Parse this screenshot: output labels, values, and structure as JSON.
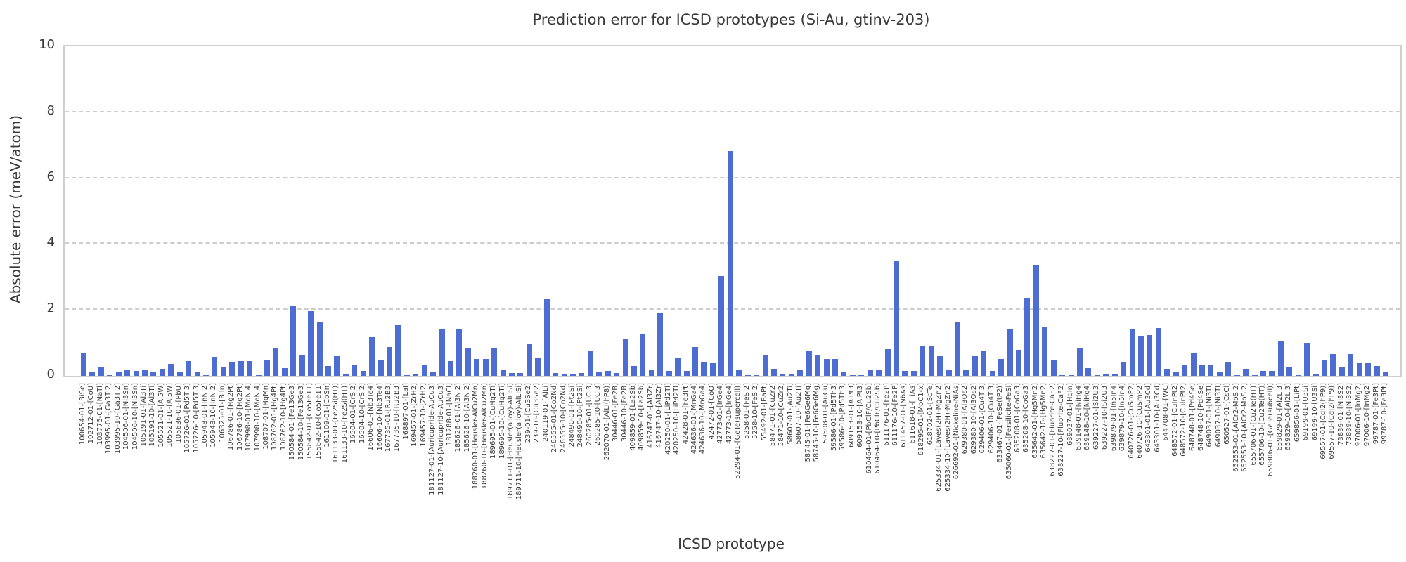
{
  "figure": {
    "title": "Prediction error for ICSD prototypes (Si-Au, gtinv-203)",
    "xlabel": "ICSD prototype",
    "ylabel": "Absolute error (meV/atom)"
  },
  "chart_data": {
    "type": "bar",
    "title": "Prediction error for ICSD prototypes (Si-Au, gtinv-203)",
    "xlabel": "ICSD prototype",
    "ylabel": "Absolute error (meV/atom)",
    "ylim": [
      0,
      10
    ],
    "yticks": [
      0,
      2,
      4,
      6,
      8,
      10
    ],
    "grid": "horizontal-dashed",
    "legend": "none",
    "bar_color": "#4e6dd2",
    "categories": [
      "100654-01-[BiSe]",
      "102712-01-[CoU]",
      "103775-01-[NaTl]",
      "103995-01-[Ga3Ti2]",
      "103995-10-[Ga3Ti2]",
      "104506-01-[Ni3Sn]",
      "104506-10-[Ni3Sn]",
      "105191-01-[Al3Ti]",
      "105191-10-[Al3Ti]",
      "105521-01-[Al5W]",
      "105521-10-[Al5W]",
      "105636-01-[PbU]",
      "105726-01-[Pd5Ti3]",
      "105726-10-[Pd5Ti3]",
      "105948-01-[InNi2]",
      "105948-10-[InNi2]",
      "106325-01-[BiIn]",
      "106786-01-[Hg2Pt]",
      "106786-10-[Hg2Pt]",
      "107998-01-[MoNi4]",
      "107998-10-[MoNi4]",
      "108707-01-[HgMn]",
      "108762-01-[Hg4Pt]",
      "108762-10-[Hg4Pt]",
      "150584-01-[Fe13Ge3]",
      "150584-10-[Fe13Ge3]",
      "155842-01-[Co5Fe11]",
      "155842-10-[Co5Fe11]",
      "161109-01-[CoSn]",
      "161133-01-[Fe2Si(HT)]",
      "161133-10-[Fe2Si(HT)]",
      "16504-01-[CrSi2]",
      "16504-10-[CrSi2]",
      "16606-01-[Nb3Te4]",
      "16606-10-[Nb3Te4]",
      "167735-01-[Ru2B3]",
      "167735-10-[Ru2B3]",
      "168897-01-[LaI]",
      "169457-01-[ZrH2]",
      "169457-10-[ZrH2]",
      "181127-01-[Auricupride-AuCu3]",
      "181127-10-[Auricupride-AuCu3]",
      "181788-01-[NaCl]",
      "185626-01-[Al3Ni2]",
      "185626-10-[Al3Ni2]",
      "188260-01-[Heusler-AlCu2Mn]",
      "188260-10-[Heusler-AlCu2Mn]",
      "189695-01-[CuHg2Ti]",
      "189695-10-[CuHg2Ti]",
      "189711-01-[Heusler(alloy)-AlLiSi]",
      "189711-10-[Heusler(alloy)-AlLiSi]",
      "239-01-[Cu3Se2]",
      "239-10-[Cu3Se2]",
      "240119-01-[AlLi]",
      "246555-01-[Co2Nd]",
      "246555-10-[Co2Nd]",
      "248490-01-[Pt2Si]",
      "248490-10-[Pt2Si]",
      "260285-01-[UCl3]",
      "260285-10-[UCl3]",
      "262070-01-[AlLi(hP8)]",
      "30446-01-[Fe2B]",
      "30446-10-[Fe2B]",
      "409859-01-[La2Sb]",
      "409859-10-[La2Sb]",
      "416747-01-[Al3Zr]",
      "416747-10-[Al3Zr]",
      "420250-01-[LiPd2Tl]",
      "420250-10-[LiPd2Tl]",
      "42428-01-[Fe3Pt]",
      "424636-01-[MnGa4]",
      "424636-10-[MnGa4]",
      "42472-01-[CoO]",
      "42773-01-[IrGe4]",
      "42773-10-[IrGe4]",
      "52294-01-[GeTe(supercell)]",
      "5258-01-[FeSi2]",
      "5258-10-[FeSi2]",
      "55492-01-[BaPt]",
      "58471-01-[CuZr2]",
      "58471-10-[CuZr2]",
      "58607-01-[Au2Ti]",
      "58607-10-[Au2Ti]",
      "58745-01-[Fe6Ge6Mg]",
      "58745-10-[Fe6Ge6Mg]",
      "59508-01-[AuCu]",
      "59586-01-[Pd5Th3]",
      "59586-10-[Pd5Th3]",
      "609153-01-[AlPt3]",
      "609153-10-[AlPt3]",
      "610464-01-[PbClF/Cu2Sb]",
      "610464-10-[PbClF/Cu2Sb]",
      "611176-01-[Fe2P]",
      "611176-10-[Fe2P]",
      "611457-01-[NbAs]",
      "611618-01-[TiAs]",
      "618295-01-[MoC1-x]",
      "618702-01-[ScTe]",
      "625334-01-[Laves(2H)-MgZn2]",
      "625334-10-[Laves(2H)-MgZn2]",
      "626692-01-[Nickeline-NiAs]",
      "629380-01-[Al3Os2]",
      "629380-10-[Al3Os2]",
      "629406-01-[Cu4Ti3]",
      "629406-10-[Cu4Ti3]",
      "633467-01-[FeSe(tP2)]",
      "635060-01-[Fersilicite-FeSi]",
      "635208-01-[CoGa3]",
      "635208-10-[CoGa3]",
      "635642-01-[Hg5Mn2]",
      "635642-10-[Hg5Mn2]",
      "638227-01-[Fluorite-CaF2]",
      "638227-10-[Fluorite-CaF2]",
      "639037-01-[HgIn]",
      "639148-01-[NiHg4]",
      "639148-10-[NiHg4]",
      "639227-01-[Si2U3]",
      "639227-10-[Si2U3]",
      "639879-01-[In5In4]",
      "639879-10-[In5In4]",
      "640726-01-[CuSmP2]",
      "640726-10-[CuSmP2]",
      "643301-01-[Au3Cd]",
      "643301-10-[Au3Cd]",
      "644708-01-[WC]",
      "648572-01-[CuInPt2]",
      "648572-10-[CuInPt2]",
      "648748-01-[Pd4Se]",
      "648748-10-[Pd4Se]",
      "649037-01-[Ni3Tl]",
      "649037-10-[Ni3Tl]",
      "650527-01-[CsCl]",
      "652553-01-[AlCr2-MoSi2]",
      "652553-10-[AlCr2-MoSi2]",
      "655706-01-[Cu2Te(HT)]",
      "655706-10-[Cu2Te(HT)]",
      "659806-01-[GeTe(subcell)]",
      "659829-01-[Al2Li3]",
      "659829-10-[Al2Li3]",
      "659856-01-[LiPt]",
      "69199-01-[U3Si]",
      "69199-10-[U3Si]",
      "69557-01-[CdI2(hP9)]",
      "69557-10-[CdI2(hP9)]",
      "73839-01-[Ni3S2]",
      "73839-10-[Ni3S2]",
      "97006-01-[InMg2]",
      "97006-10-[InMg2]",
      "99787-01-[Fe3Pt]",
      "99787-10-[Fe3Pt]"
    ],
    "values": [
      0.7,
      0.12,
      0.27,
      0.02,
      0.11,
      0.2,
      0.15,
      0.17,
      0.11,
      0.22,
      0.37,
      0.13,
      0.44,
      0.12,
      0.03,
      0.58,
      0.25,
      0.42,
      0.44,
      0.44,
      0.03,
      0.5,
      0.85,
      0.23,
      2.13,
      0.63,
      1.98,
      1.63,
      0.3,
      0.6,
      0.05,
      0.35,
      0.15,
      1.18,
      0.48,
      0.88,
      1.54,
      0.03,
      0.05,
      0.33,
      0.1,
      1.4,
      0.44,
      1.41,
      0.86,
      0.52,
      0.52,
      0.86,
      0.2,
      0.08,
      0.08,
      0.99,
      0.56,
      2.32,
      0.08,
      0.04,
      0.04,
      0.08,
      0.75,
      0.12,
      0.15,
      0.08,
      1.14,
      0.3,
      1.26,
      0.2,
      1.9,
      0.15,
      0.53,
      0.15,
      0.88,
      0.43,
      0.38,
      3.02,
      6.82,
      0.17,
      0.03,
      0.02,
      0.65,
      0.21,
      0.06,
      0.04,
      0.17,
      0.77,
      0.62,
      0.52,
      0.52,
      0.1,
      0.02,
      0.02,
      0.17,
      0.19,
      0.81,
      3.47,
      0.14,
      0.16,
      0.92,
      0.9,
      0.59,
      0.19,
      1.64,
      0.17,
      0.6,
      0.75,
      0.14,
      0.51,
      1.43,
      0.79,
      2.36,
      3.37,
      1.48,
      0.46,
      0.03,
      0.03,
      0.84,
      0.23,
      0.02,
      0.07,
      0.06,
      0.42,
      1.4,
      1.2,
      1.23,
      1.46,
      0.22,
      0.1,
      0.32,
      0.71,
      0.34,
      0.33,
      0.12,
      0.41,
      0.03,
      0.21,
      0.02,
      0.14,
      0.14,
      1.05,
      0.27,
      0.03,
      1.01,
      0.05,
      0.47,
      0.67,
      0.28,
      0.67,
      0.38,
      0.38,
      0.3,
      0.12
    ]
  }
}
